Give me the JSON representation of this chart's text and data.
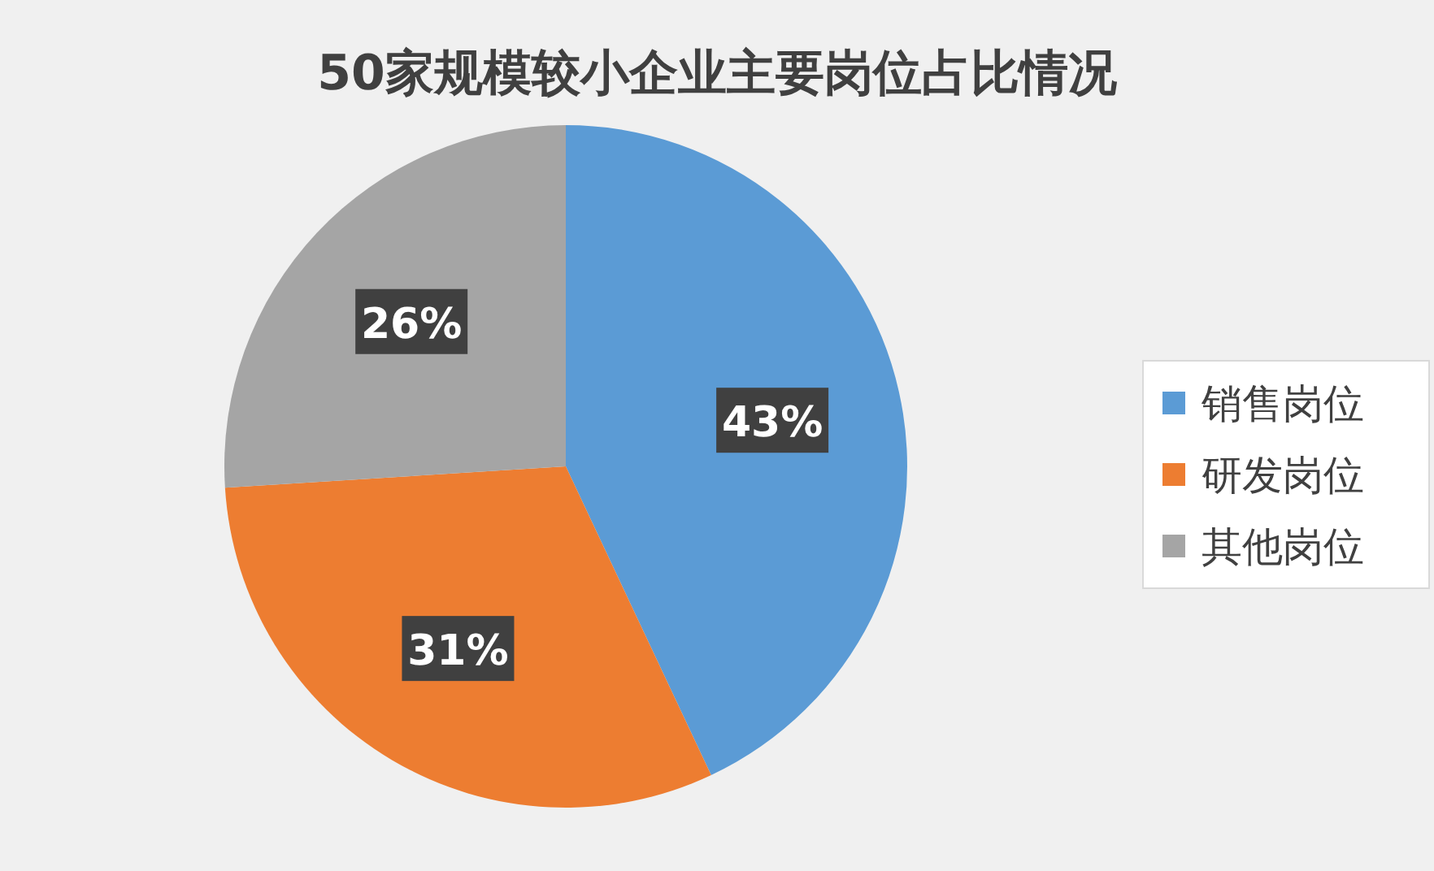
{
  "chart_data": {
    "type": "pie",
    "title": "50家规模较小企业主要岗位占比情况",
    "categories": [
      "销售岗位",
      "研发岗位",
      "其他岗位"
    ],
    "values": [
      43,
      31,
      26
    ],
    "colors": [
      "#5b9bd5",
      "#ed7d31",
      "#a5a5a5"
    ],
    "value_labels": [
      "43%",
      "31%",
      "26%"
    ],
    "legend": "right"
  }
}
